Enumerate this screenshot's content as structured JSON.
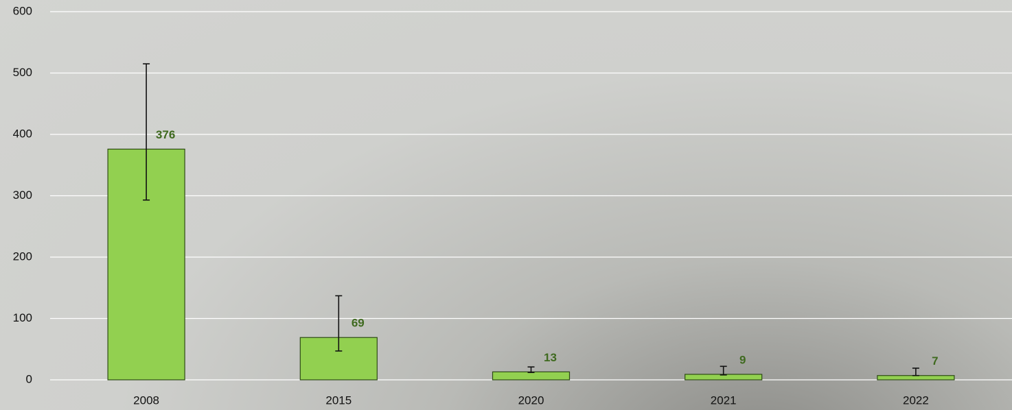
{
  "chart_data": {
    "type": "bar",
    "categories": [
      "2008",
      "2015",
      "2020",
      "2021",
      "2022"
    ],
    "values": [
      376,
      69,
      13,
      9,
      7
    ],
    "error_minus": [
      83,
      22,
      1,
      1,
      0
    ],
    "error_plus": [
      139,
      68,
      8,
      13,
      12
    ],
    "color": "#92d050",
    "ylim": [
      0,
      600
    ],
    "yticks": [
      0,
      100,
      200,
      300,
      400,
      500,
      600
    ],
    "grid": true
  }
}
